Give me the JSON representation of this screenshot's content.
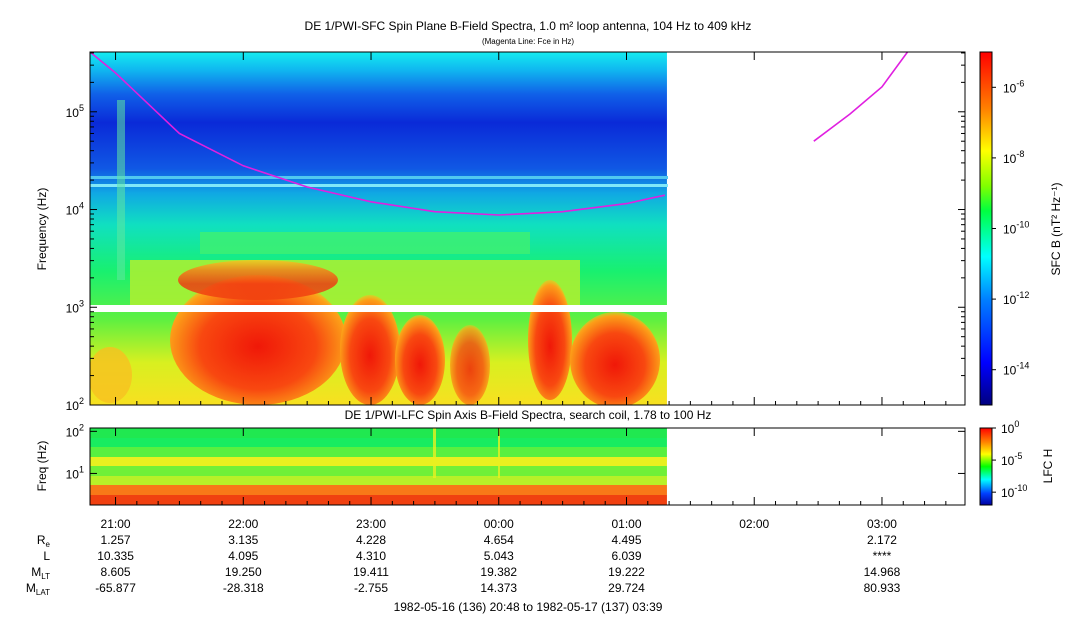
{
  "chart_data": [
    {
      "type": "heatmap",
      "title": "DE 1/PWI-SFC  Spin Plane B-Field Spectra, 1.0 m² loop antenna, 104 Hz to 409 kHz",
      "subtitle": "(Magenta Line: Fce in Hz)",
      "ylabel": "Frequency (Hz)",
      "yscale": "log",
      "ylim": [
        100,
        409000
      ],
      "yticks": [
        {
          "value": 100,
          "base": "10",
          "exp": "2"
        },
        {
          "value": 1000,
          "base": "10",
          "exp": "3"
        },
        {
          "value": 10000,
          "base": "10",
          "exp": "4"
        },
        {
          "value": 100000,
          "base": "10",
          "exp": "5"
        }
      ],
      "colorbar": {
        "label": "SFC B (nT² Hz⁻¹)",
        "scale": "log",
        "range": [
          1e-15,
          1e-05
        ],
        "ticks": [
          {
            "base": "10",
            "exp": "-6",
            "value": 1e-06
          },
          {
            "base": "10",
            "exp": "-8",
            "value": 1e-08
          },
          {
            "base": "10",
            "exp": "-10",
            "value": 1e-10
          },
          {
            "base": "10",
            "exp": "-12",
            "value": 1e-12
          },
          {
            "base": "10",
            "exp": "-14",
            "value": 1e-14
          }
        ]
      },
      "data_end": "01:19",
      "fce_line": {
        "name": "Fce",
        "color": "#e020e0",
        "segment1": [
          {
            "t": "20:48",
            "f": 409000
          },
          {
            "t": "21:00",
            "f": 250000
          },
          {
            "t": "21:30",
            "f": 60000
          },
          {
            "t": "22:00",
            "f": 28000
          },
          {
            "t": "22:30",
            "f": 17000
          },
          {
            "t": "23:00",
            "f": 12000
          },
          {
            "t": "23:30",
            "f": 9500
          },
          {
            "t": "00:00",
            "f": 8800
          },
          {
            "t": "00:30",
            "f": 9500
          },
          {
            "t": "01:00",
            "f": 11500
          },
          {
            "t": "01:18",
            "f": 14000
          }
        ],
        "segment2": [
          {
            "t": "02:28",
            "f": 50000
          },
          {
            "t": "02:45",
            "f": 95000
          },
          {
            "t": "03:00",
            "f": 180000
          },
          {
            "t": "03:12",
            "f": 409000
          }
        ]
      }
    },
    {
      "type": "heatmap",
      "title": "DE 1/PWI-LFC  Spin Axis B-Field Spectra, search coil, 1.78 to 100 Hz",
      "ylabel": "Freq (Hz)",
      "yscale": "log",
      "ylim": [
        1.78,
        120
      ],
      "yticks": [
        {
          "value": 10,
          "base": "10",
          "exp": "1"
        },
        {
          "value": 100,
          "base": "10",
          "exp": "2"
        }
      ],
      "colorbar": {
        "label": "LFC H",
        "scale": "log",
        "range": [
          1e-12,
          1
        ],
        "ticks": [
          {
            "base": "10",
            "exp": "0",
            "value": 1
          },
          {
            "base": "10",
            "exp": "-5",
            "value": 1e-05
          },
          {
            "base": "10",
            "exp": "-10",
            "value": 1e-10
          }
        ]
      },
      "data_end": "01:19"
    }
  ],
  "time_axis": {
    "start": "20:48",
    "end": "03:39",
    "ticks": [
      "21:00",
      "22:00",
      "23:00",
      "00:00",
      "01:00",
      "02:00",
      "03:00"
    ]
  },
  "ephemeris": {
    "rows": [
      {
        "label": "R",
        "sub": "e",
        "values": [
          "1.257",
          "3.135",
          "4.228",
          "4.654",
          "4.495",
          "",
          "2.172"
        ]
      },
      {
        "label": "L",
        "sub": "",
        "values": [
          "10.335",
          "4.095",
          "4.310",
          "5.043",
          "6.039",
          "",
          "****"
        ]
      },
      {
        "label": "M",
        "sub": "LT",
        "values": [
          "8.605",
          "19.250",
          "19.411",
          "19.382",
          "19.222",
          "",
          "14.968"
        ]
      },
      {
        "label": "M",
        "sub": "LAT",
        "values": [
          "-65.877",
          "-28.318",
          "-2.755",
          "14.373",
          "29.724",
          "",
          "80.933"
        ]
      }
    ]
  },
  "footer": "1982-05-16 (136) 20:48 to 1982-05-17 (137) 03:39"
}
